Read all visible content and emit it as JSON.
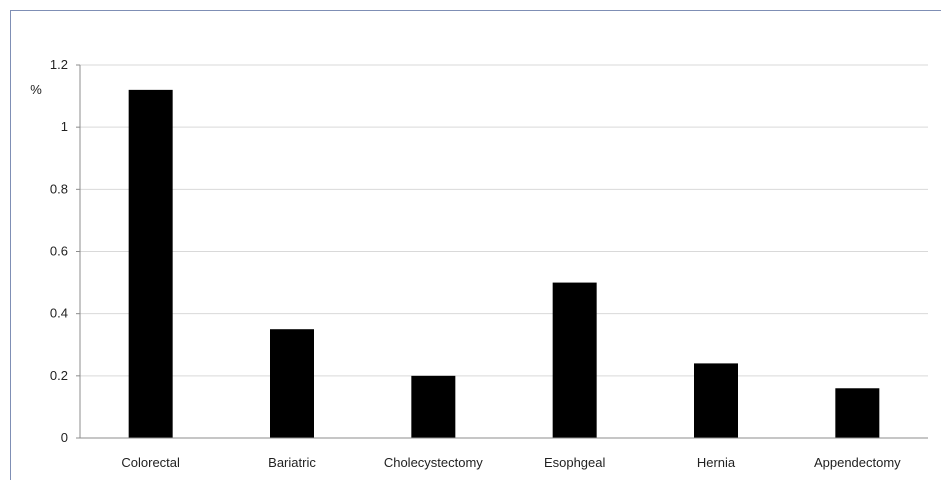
{
  "chart_data": {
    "type": "bar",
    "categories": [
      "Colorectal",
      "Bariatric",
      "Cholecystectomy",
      "Esophgeal",
      "Hernia",
      "Appendectomy"
    ],
    "values": [
      1.12,
      0.35,
      0.2,
      0.5,
      0.24,
      0.16
    ],
    "ylabel": "%",
    "yticks": [
      "0",
      "0.2",
      "0.4",
      "0.6",
      "0.8",
      "1",
      "1.2"
    ],
    "ylim": [
      0,
      1.2
    ],
    "grid": true,
    "colors": {
      "bar": "#000000",
      "grid": "#d9d9d9",
      "axis": "#8c8c8c"
    }
  }
}
